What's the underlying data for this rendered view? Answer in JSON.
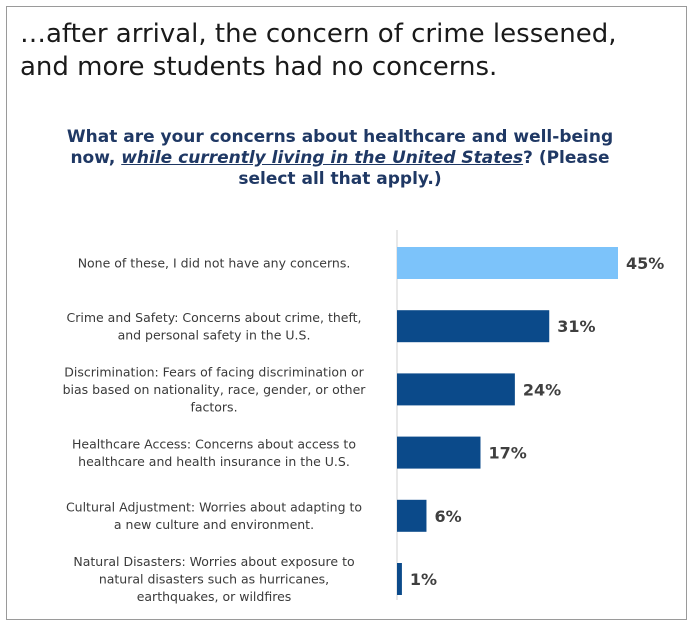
{
  "headline": "…after arrival, the concern of crime lessened, and more students had no concerns.",
  "question": {
    "part1": "What are your concerns about healthcare and well-being now, ",
    "emphasis": "while currently living in the United States",
    "part2": "? (Please select all that apply.)"
  },
  "colors": {
    "highlight_bar": "#7cc3fa",
    "bar": "#0b4a8a",
    "axis_line": "#d0d0d0"
  },
  "chart_data": {
    "type": "bar",
    "orientation": "horizontal",
    "categories": [
      [
        "None of these, I did not have any concerns."
      ],
      [
        "Crime and Safety: Concerns about crime, theft,",
        "and personal safety in the U.S."
      ],
      [
        "Discrimination: Fears of facing discrimination or",
        "bias based on nationality, race, gender, or other",
        "factors."
      ],
      [
        "Healthcare Access: Concerns about access to",
        "healthcare and health insurance in the U.S."
      ],
      [
        "Cultural Adjustment: Worries about adapting to",
        "a new culture and environment."
      ],
      [
        "Natural Disasters: Worries about exposure to",
        "natural disasters such as hurricanes,",
        "earthquakes, or wildfires"
      ]
    ],
    "values": [
      45,
      31,
      24,
      17,
      6,
      1
    ],
    "value_labels": [
      "45%",
      "31%",
      "24%",
      "17%",
      "6%",
      "1%"
    ],
    "highlight_index": 0,
    "xlim": [
      0,
      45
    ]
  }
}
